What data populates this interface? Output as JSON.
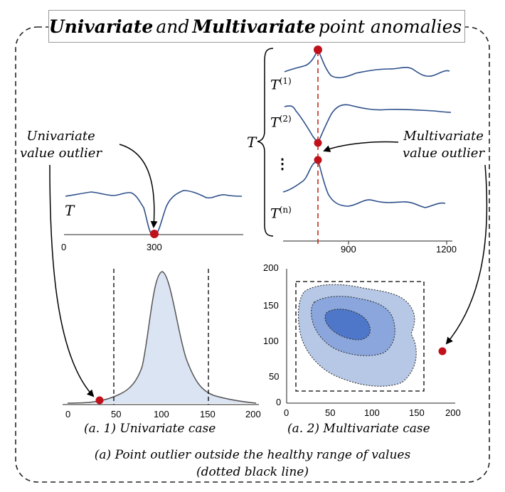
{
  "title": {
    "word1": "Univariate",
    "word2": "and",
    "word3": "Multivariate",
    "word4": "point anomalies"
  },
  "univariate_series": {
    "series_label": "T",
    "annotation_line1": "Univariate",
    "annotation_line2": "value  outlier",
    "x_ticks": [
      "0",
      "300"
    ]
  },
  "multivariate_series": {
    "group_label": "T",
    "series_labels": [
      "T",
      "T",
      "T"
    ],
    "series_superscripts": [
      "(1)",
      "(2)",
      "(n)"
    ],
    "ellipsis": "⋮",
    "annotation_line1": "Multivariate",
    "annotation_line2": "value  outlier",
    "x_ticks": [
      "900",
      "1200"
    ]
  },
  "chart_data": [
    {
      "id": "a1",
      "type": "area",
      "title": "(a. 1) Univariate case",
      "x_ticks": [
        "0",
        "50",
        "100",
        "150",
        "200"
      ],
      "xlim": [
        0,
        200
      ],
      "healthy_range": [
        50,
        150
      ],
      "peak_x": 100,
      "outlier_x": 33
    },
    {
      "id": "a2",
      "type": "scatter",
      "title": "(a. 2) Multivariate case",
      "x_ticks": [
        "0",
        "50",
        "100",
        "150",
        "200"
      ],
      "y_ticks": [
        "0",
        "50",
        "100",
        "150",
        "200"
      ],
      "xlim": [
        0,
        200
      ],
      "ylim": [
        0,
        200
      ],
      "healthy_box": {
        "x": [
          10,
          165
        ],
        "y": [
          25,
          180
        ]
      },
      "density_center": [
        80,
        125
      ],
      "outlier_point": [
        180,
        85
      ]
    }
  ],
  "caption": {
    "line1": "(a) Point outlier outside  the healthy range of values",
    "line2": "(dotted black line)"
  },
  "colors": {
    "series_line": "#2e4f8a",
    "outlier": "#c0111b",
    "threshold": "#c42a1c",
    "density_light": "#dbe4f3",
    "contour_outer": "#b6c8e6",
    "contour_mid": "#8aa6dc",
    "contour_inner": "#4e77c9"
  }
}
